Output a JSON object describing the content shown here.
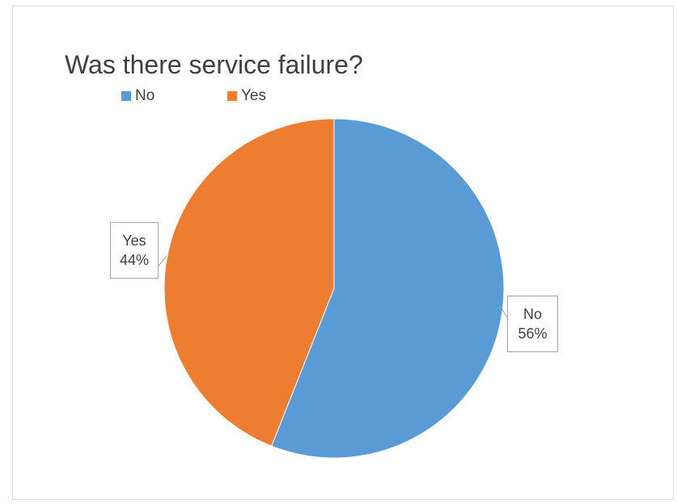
{
  "chart_data": {
    "type": "pie",
    "title": "Was there service failure?",
    "categories": [
      "No",
      "Yes"
    ],
    "values": [
      56,
      44
    ],
    "value_labels": [
      "56%",
      "44%"
    ],
    "colors": [
      "#5b9bd5",
      "#ed7d31"
    ],
    "legend": {
      "position": "top-left",
      "entries": [
        "No",
        "Yes"
      ]
    }
  }
}
